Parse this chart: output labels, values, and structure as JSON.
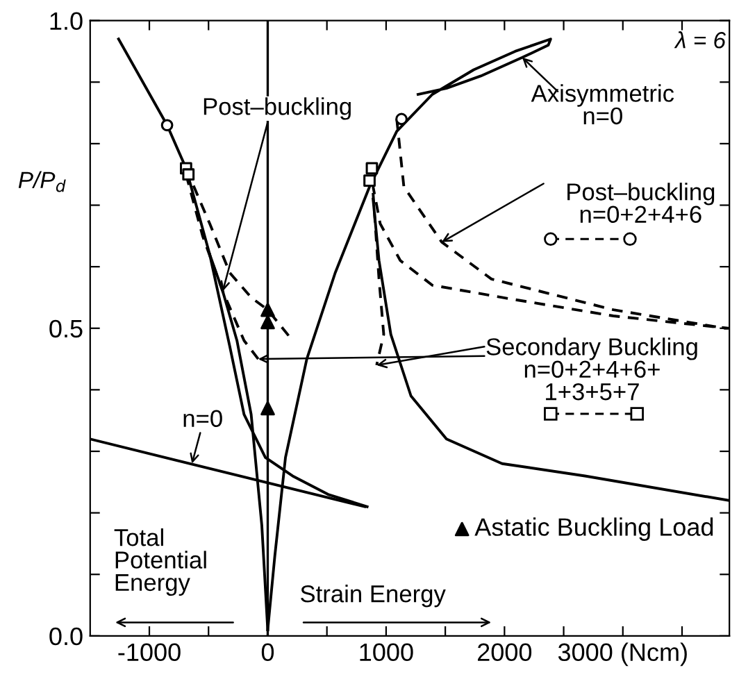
{
  "chart_data": {
    "type": "line",
    "ylabel": "P/P$_{d}$",
    "xlim": [
      -1500,
      3900
    ],
    "ylim": [
      0,
      1
    ],
    "xticks": [
      -1000,
      {
        "value": -500,
        "label": null
      },
      0,
      {
        "value": 500,
        "label": null
      },
      1000,
      {
        "value": 1500,
        "label": null
      },
      2000,
      {
        "value": 2500,
        "label": null
      },
      {
        "value": 3000,
        "label": "3000 (Ncm)"
      },
      {
        "value": 3500,
        "label": null
      }
    ],
    "yticks": [
      {
        "value": 0,
        "label": "0.0"
      },
      {
        "value": 0.1,
        "label": null
      },
      {
        "value": 0.2,
        "label": null
      },
      {
        "value": 0.3,
        "label": null
      },
      {
        "value": 0.4,
        "label": null
      },
      {
        "value": 0.5,
        "label": "0.5"
      },
      {
        "value": 0.6,
        "label": null
      },
      {
        "value": 0.7,
        "label": null
      },
      {
        "value": 0.8,
        "label": null
      },
      {
        "value": 0.9,
        "label": null
      },
      {
        "value": 1.0,
        "label": "1.0"
      }
    ],
    "grid": false,
    "legend": "bottom right",
    "ref_lines": [
      {
        "axis": "x",
        "value": 0,
        "color": "#000000",
        "line_style": "solid"
      }
    ],
    "series": [
      {
        "color": "#000000",
        "line_style": "solid",
        "x": [
          -1260,
          -850,
          -690,
          -490,
          -380,
          -260,
          -140,
          -50,
          0
        ],
        "values": [
          0.97,
          0.83,
          0.76,
          0.62,
          0.56,
          0.48,
          0.36,
          0.18,
          0.01
        ]
      },
      {
        "color": "#000000",
        "line_style": "solid",
        "x": [
          0,
          60,
          150,
          330,
          570,
          860,
          1090,
          1390,
          1740,
          2090,
          2390,
          2370,
          2150,
          1800,
          1510,
          1270
        ],
        "values": [
          0.01,
          0.13,
          0.29,
          0.45,
          0.59,
          0.73,
          0.82,
          0.88,
          0.92,
          0.95,
          0.97,
          0.96,
          0.94,
          0.91,
          0.89,
          0.88
        ]
      },
      {
        "color": "#000000",
        "line_style": "solid",
        "x": [
          890,
          940,
          1040,
          1210,
          1510,
          1980,
          2680,
          3900
        ],
        "values": [
          0.71,
          0.61,
          0.49,
          0.39,
          0.32,
          0.28,
          0.26,
          0.22
        ]
      },
      {
        "color": "#000000",
        "line_style": "solid",
        "x": [
          -490,
          -320,
          -200,
          -20,
          210,
          510,
          840
        ],
        "values": [
          0.62,
          0.47,
          0.36,
          0.29,
          0.26,
          0.23,
          0.21
        ]
      },
      {
        "color": "#000000",
        "line_style": "solid",
        "x": [
          -1500,
          820
        ],
        "values": [
          0.32,
          0.21
        ]
      },
      {
        "color": "#000000",
        "line_style": "dashed",
        "x": [
          1090,
          1150,
          1470,
          1890,
          2920,
          3860,
          3890,
          2920,
          1980,
          1390,
          1120,
          950,
          890
        ],
        "values": [
          0.84,
          0.73,
          0.64,
          0.58,
          0.53,
          0.5,
          0.5,
          0.52,
          0.55,
          0.57,
          0.61,
          0.67,
          0.73
        ]
      },
      {
        "color": "#000000",
        "line_style": "dashed",
        "x": [
          890,
          940,
          980,
          920
        ],
        "values": [
          0.72,
          0.58,
          0.49,
          0.44
        ]
      },
      {
        "color": "#000000",
        "line_style": "dashed",
        "x": [
          -690,
          -490,
          -320,
          -140,
          0,
          210
        ],
        "values": [
          0.76,
          0.67,
          0.59,
          0.55,
          0.53,
          0.48
        ]
      },
      {
        "color": "#000000",
        "line_style": "dashed",
        "x": [
          -690,
          -550,
          -380,
          -200,
          -80
        ],
        "values": [
          0.75,
          0.65,
          0.56,
          0.48,
          0.45
        ]
      },
      {
        "type": "scatter",
        "color": "#000000",
        "marker": "circle",
        "x": [
          -850,
          1130
        ],
        "values": [
          0.83,
          0.84
        ]
      },
      {
        "type": "scatter",
        "color": "#000000",
        "marker": "square",
        "x": [
          -690,
          -670,
          880,
          860
        ],
        "values": [
          0.76,
          0.75,
          0.76,
          0.74
        ]
      },
      {
        "type": "scatter",
        "color": "#000000",
        "marker": "triangle",
        "name": "Astatic Buckling Load",
        "x": [
          0,
          0,
          0
        ],
        "values": [
          0.53,
          0.51,
          0.37
        ]
      }
    ],
    "annotations": [
      "λ = 6",
      {
        "text": "Post–buckling",
        "x": -380,
        "y": 0.56
      },
      {
        "text": "Axisymmetric\nn=0",
        "x": 2150,
        "y": 0.94
      },
      {
        "text": "Post–buckling\nn=0+2+4+6",
        "x": 1470,
        "y": 0.64
      },
      {
        "text": "Secondary Buckling\nn=0+2+4+6+\n1+3+5+7",
        "x": -80,
        "y": 0.45
      },
      {
        "text": "n=0",
        "x": -640,
        "y": 0.28
      },
      "Total\nPotential\nEnergy",
      "Strain Energy"
    ]
  }
}
